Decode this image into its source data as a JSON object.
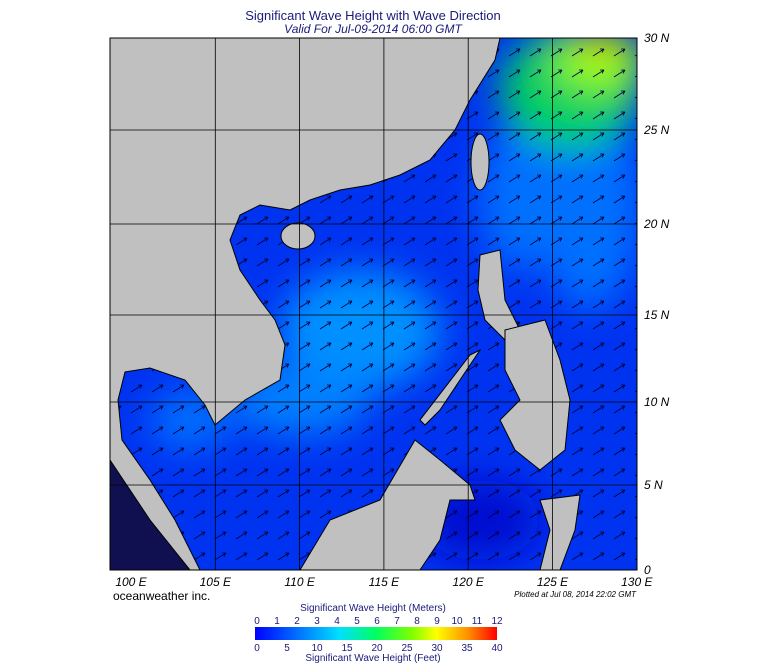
{
  "title": "Significant Wave Height with Wave Direction",
  "subtitle": "Valid For Jul-09-2014 06:00 GMT",
  "lon_labels": [
    "100 E",
    "105 E",
    "110 E",
    "115 E",
    "120 E",
    "125 E",
    "130 E"
  ],
  "lat_labels": [
    "30 N",
    "25 N",
    "20 N",
    "15 N",
    "10 N",
    "5 N",
    "0"
  ],
  "credit": "oceanweather inc.",
  "plotted": "Plotted at Jul 08, 2014 22:02 GMT",
  "colorbar": {
    "title_top": "Significant Wave Height (Meters)",
    "meters": [
      "0",
      "1",
      "2",
      "3",
      "4",
      "5",
      "6",
      "7",
      "8",
      "9",
      "10",
      "11",
      "12"
    ],
    "feet": [
      "0",
      "5",
      "10",
      "15",
      "20",
      "25",
      "30",
      "35",
      "40"
    ],
    "title_bottom": "Significant Wave Height (Feet)"
  }
}
